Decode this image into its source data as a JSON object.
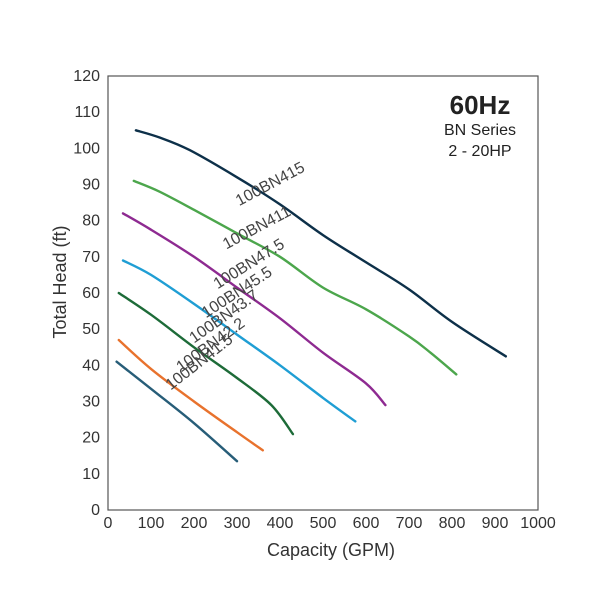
{
  "chart_data": {
    "type": "line",
    "title": "60Hz",
    "subtitle_lines": [
      "BN Series",
      "2 - 20HP"
    ],
    "xlabel": "Capacity (GPM)",
    "ylabel": "Total Head (ft)",
    "xlim": [
      0,
      1000
    ],
    "ylim": [
      0,
      120
    ],
    "xticks": [
      0,
      100,
      200,
      300,
      400,
      500,
      600,
      700,
      800,
      900,
      1000
    ],
    "yticks": [
      0,
      10,
      20,
      30,
      40,
      50,
      60,
      70,
      80,
      90,
      100,
      110,
      120
    ],
    "grid": false,
    "legend": "none",
    "series": [
      {
        "name": "100BN415",
        "color": "#0d3049",
        "points": [
          [
            65,
            105
          ],
          [
            120,
            103
          ],
          [
            190,
            99.5
          ],
          [
            300,
            92
          ],
          [
            400,
            84.5
          ],
          [
            500,
            76
          ],
          [
            600,
            68.5
          ],
          [
            700,
            61
          ],
          [
            800,
            52
          ],
          [
            925,
            42.5
          ]
        ]
      },
      {
        "name": "100BN411",
        "color": "#4ca64c",
        "points": [
          [
            60,
            91
          ],
          [
            120,
            88
          ],
          [
            200,
            83
          ],
          [
            300,
            76.5
          ],
          [
            400,
            70
          ],
          [
            500,
            61.5
          ],
          [
            600,
            55.5
          ],
          [
            700,
            48
          ],
          [
            750,
            43.5
          ],
          [
            810,
            37.5
          ]
        ]
      },
      {
        "name": "100BN47.5",
        "color": "#8e2a91",
        "points": [
          [
            35,
            82
          ],
          [
            100,
            77.5
          ],
          [
            200,
            70
          ],
          [
            300,
            61.5
          ],
          [
            400,
            53
          ],
          [
            500,
            43.5
          ],
          [
            600,
            35
          ],
          [
            645,
            29
          ]
        ]
      },
      {
        "name": "100BN45.5",
        "color": "#1f9ed4",
        "points": [
          [
            35,
            69
          ],
          [
            100,
            65
          ],
          [
            200,
            57
          ],
          [
            300,
            48.5
          ],
          [
            400,
            40
          ],
          [
            500,
            31
          ],
          [
            575,
            24.5
          ]
        ]
      },
      {
        "name": "100BN43.7",
        "color": "#1d6b38",
        "points": [
          [
            25,
            60
          ],
          [
            100,
            54
          ],
          [
            200,
            45
          ],
          [
            300,
            36.5
          ],
          [
            380,
            29
          ],
          [
            430,
            21
          ]
        ]
      },
      {
        "name": "100BN42.2",
        "color": "#e8722d",
        "points": [
          [
            25,
            47
          ],
          [
            100,
            39
          ],
          [
            200,
            30
          ],
          [
            300,
            21.5
          ],
          [
            360,
            16.5
          ]
        ]
      },
      {
        "name": "100BN41.5",
        "color": "#275d78",
        "points": [
          [
            20,
            41
          ],
          [
            100,
            33.5
          ],
          [
            200,
            24
          ],
          [
            300,
            13.5
          ]
        ]
      }
    ],
    "labels": [
      {
        "text": "100BN415",
        "x": 305,
        "y": 84,
        "angle": -28
      },
      {
        "text": "100BN411",
        "x": 275,
        "y": 72,
        "angle": -28
      },
      {
        "text": "100BN47.5",
        "x": 255,
        "y": 61,
        "angle": -32
      },
      {
        "text": "100BN45.5",
        "x": 228,
        "y": 53,
        "angle": -33
      },
      {
        "text": "100BN43.7",
        "x": 200,
        "y": 46,
        "angle": -35
      },
      {
        "text": "100BN42.2",
        "x": 170,
        "y": 38,
        "angle": -36
      },
      {
        "text": "100BN41.5",
        "x": 146,
        "y": 33,
        "angle": -38
      }
    ]
  }
}
